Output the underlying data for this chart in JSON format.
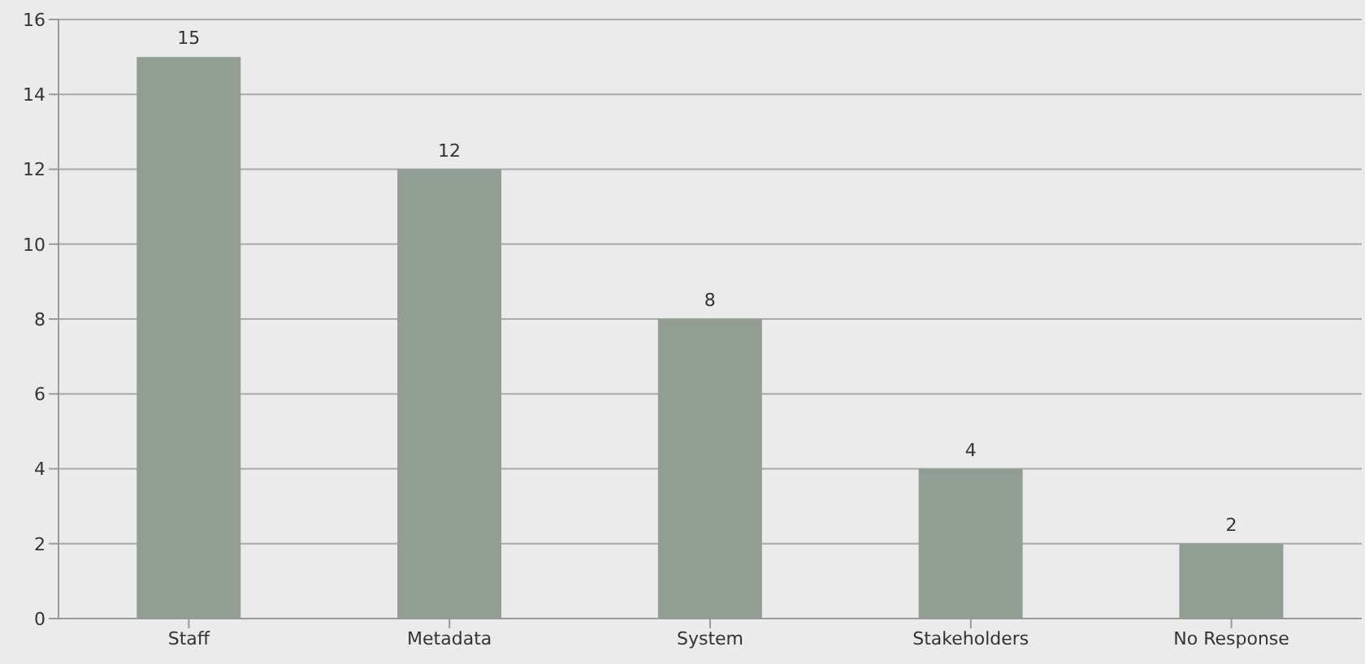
{
  "chart_data": {
    "type": "bar",
    "categories": [
      "Staff",
      "Metadata",
      "System",
      "Stakeholders",
      "No Response"
    ],
    "values": [
      15,
      12,
      8,
      4,
      2
    ],
    "color": "#919f92",
    "ylim": [
      0,
      16
    ],
    "yticks": [
      0,
      2,
      4,
      6,
      8,
      10,
      12,
      14,
      16
    ],
    "grid": "y",
    "data_labels": true
  }
}
